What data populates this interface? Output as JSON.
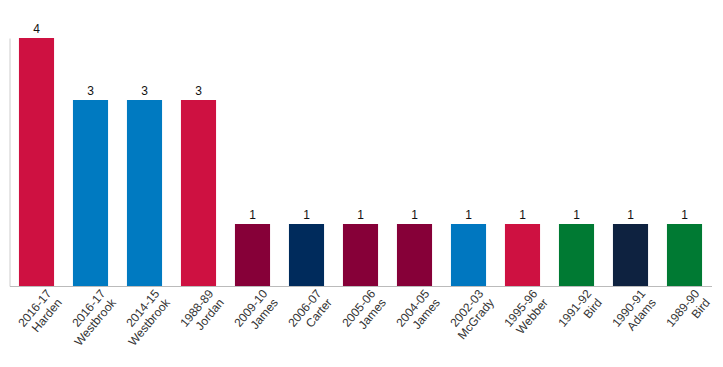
{
  "chart_data": {
    "type": "bar",
    "categories": [
      "2016-17 Harden",
      "2016-17 Westbrook",
      "2014-15 Westbrook",
      "1988-89 Jordan",
      "2009-10 James",
      "2006-07 Carter",
      "2005-06 James",
      "2004-05 James",
      "2002-03 McGrady",
      "1995-96 Webber",
      "1991-92 Bird",
      "1990-91 Adams",
      "1989-90 Bird"
    ],
    "values": [
      4,
      3,
      3,
      3,
      1,
      1,
      1,
      1,
      1,
      1,
      1,
      1,
      1
    ],
    "colors": [
      "#ce1141",
      "#007ac1",
      "#007ac1",
      "#ce1141",
      "#860038",
      "#002b5c",
      "#860038",
      "#860038",
      "#0077c0",
      "#ce1141",
      "#007a33",
      "#0e2240",
      "#007a33"
    ],
    "ylim": [
      0,
      4
    ],
    "data_labels": true,
    "tick_labels": "x"
  }
}
